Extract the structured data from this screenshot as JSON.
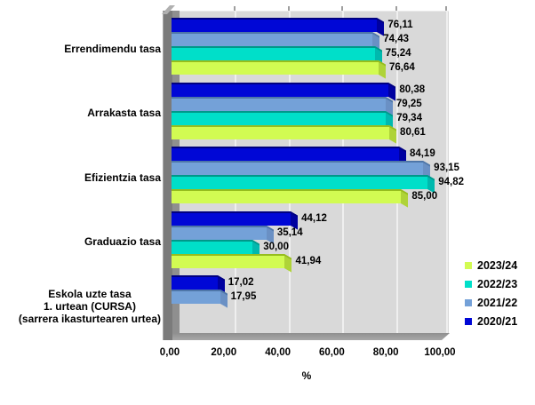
{
  "chart_data": {
    "type": "bar",
    "orientation": "horizontal",
    "title": "",
    "categories": [
      "Errendimendu tasa",
      "Arrakasta tasa",
      "Efizientzia tasa",
      "Graduazio tasa",
      "Eskola uzte tasa\n1. urtean (CURSA)\n(sarrera ikasturtearen urtea)"
    ],
    "series": [
      {
        "name": "2020/21",
        "color": "#0007d6",
        "color_top": "#000080",
        "color_cap": "#0000a0",
        "values": [
          76.11,
          80.38,
          84.19,
          44.12,
          17.02
        ]
      },
      {
        "name": "2021/22",
        "color": "#74a1d8",
        "color_top": "#4e76a8",
        "color_cap": "#6a90c4",
        "values": [
          74.43,
          79.25,
          93.15,
          35.14,
          17.95
        ]
      },
      {
        "name": "2022/23",
        "color": "#00dfc9",
        "color_top": "#00988a",
        "color_cap": "#00b9ae",
        "values": [
          75.24,
          79.34,
          94.82,
          30.0,
          null
        ]
      },
      {
        "name": "2023/24",
        "color": "#d2fb52",
        "color_top": "#96bd1e",
        "color_cap": "#afd338",
        "values": [
          76.64,
          80.61,
          85.0,
          41.94,
          null
        ]
      }
    ],
    "value_labels_format": "comma-decimal-2",
    "x_axis": {
      "title": "%",
      "tick_labels": [
        "0,00",
        "20,00",
        "40,00",
        "60,00",
        "80,00",
        "100,00"
      ],
      "tick_step": 20,
      "range": [
        0,
        100
      ],
      "grid": true
    },
    "legend": {
      "position": "right",
      "entries": [
        "2023/24",
        "2022/23",
        "2021/22",
        "2020/21"
      ]
    },
    "style_colors": {
      "plot_background": "#d9d9d9",
      "gridline": "#efefef",
      "wall": "#7b7b7b",
      "floor": "#9c9c9c",
      "text": "#000000"
    }
  }
}
